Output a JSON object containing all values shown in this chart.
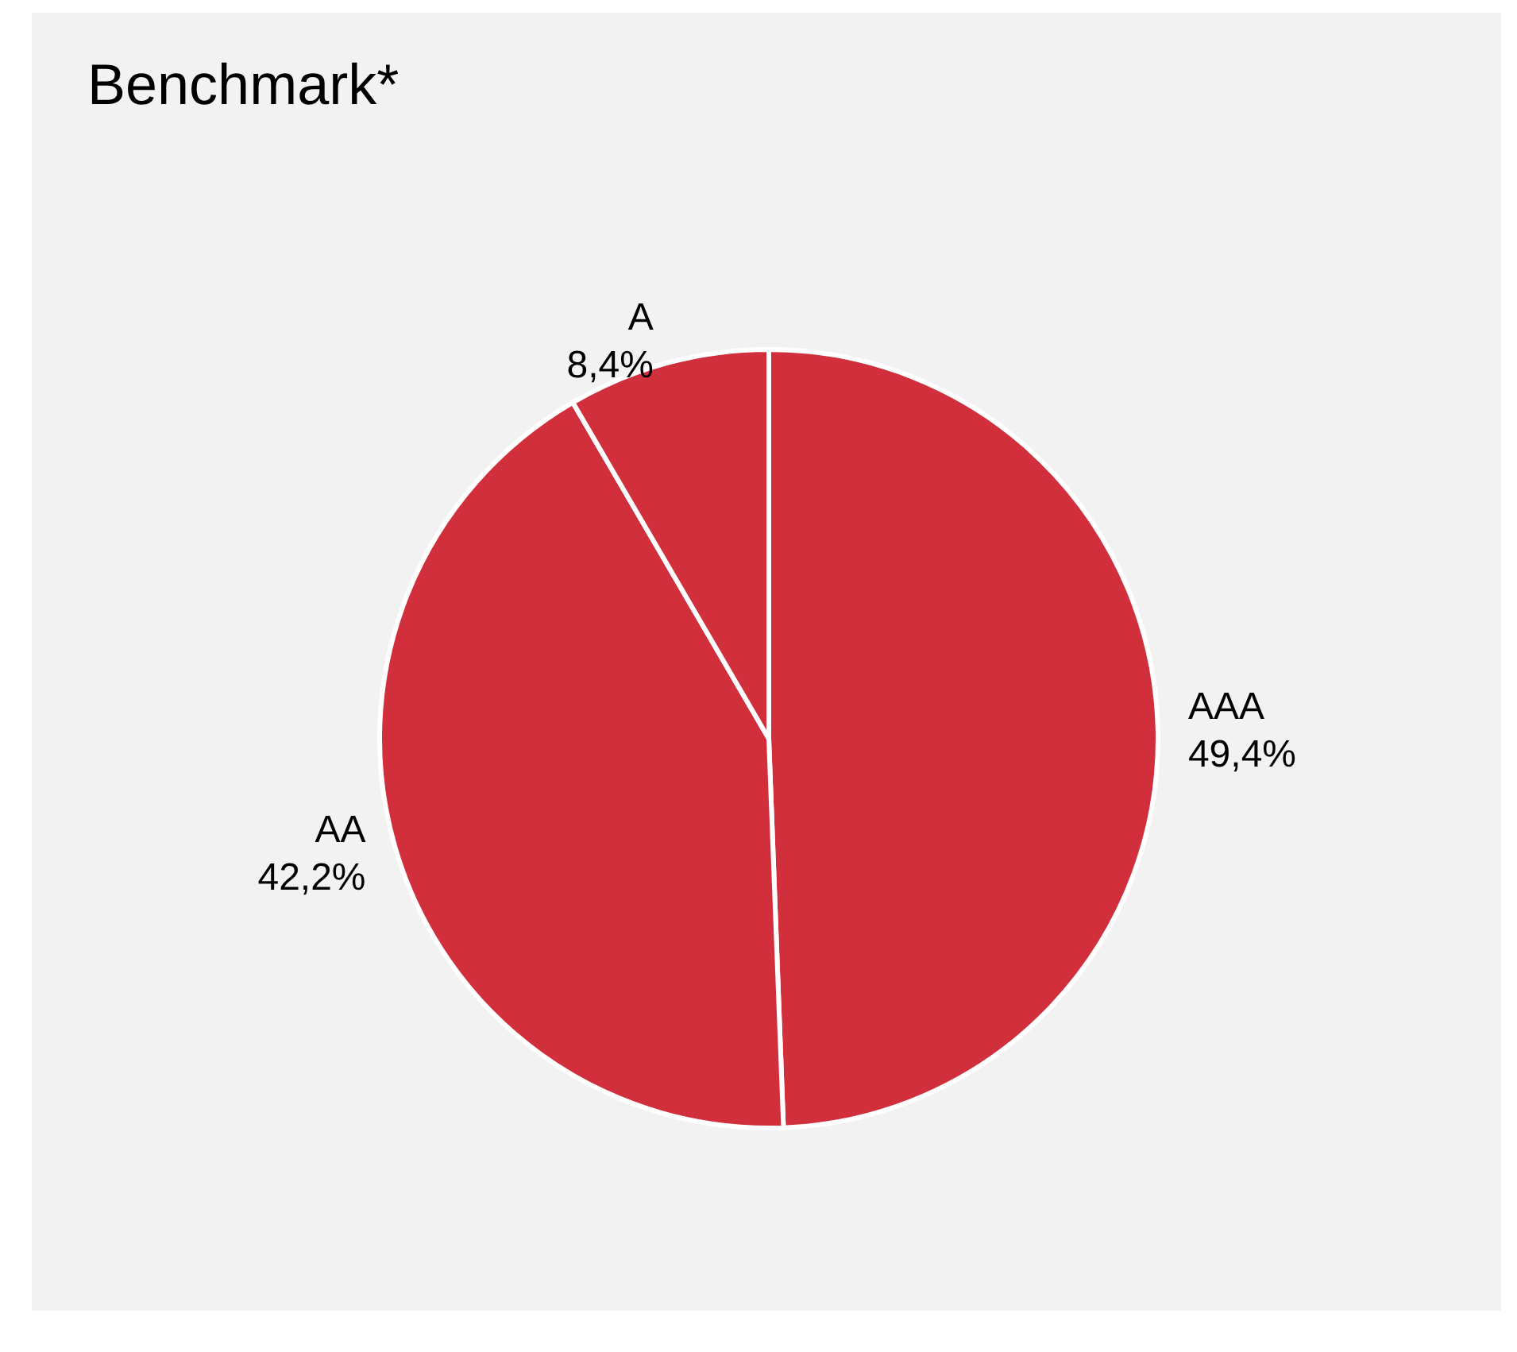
{
  "chart_data": {
    "type": "pie",
    "title": "Benchmark*",
    "categories": [
      "AAA",
      "AA",
      "A"
    ],
    "values": [
      49.4,
      42.2,
      8.4
    ],
    "value_labels": [
      "49,4%",
      "42,2%",
      "8,4%"
    ],
    "colors": [
      "#d12f3c",
      "#d12f3c",
      "#d12f3c"
    ],
    "legend": false
  }
}
